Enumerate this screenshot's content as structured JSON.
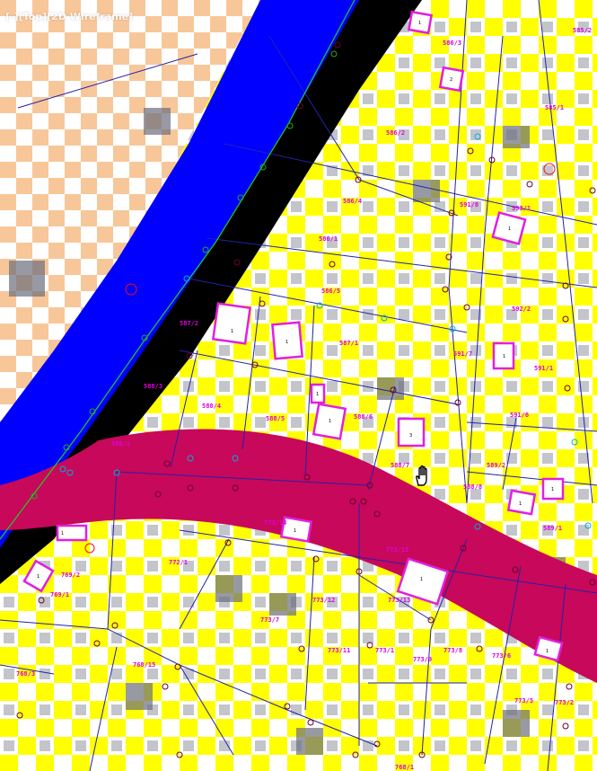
{
  "viewport": {
    "label": "[-][Top][2D Wireframe]",
    "view": "Top",
    "visual_style": "2D Wireframe"
  },
  "colors": {
    "checker_peach": "#f7c79a",
    "checker_white": "#ffffff",
    "checker_yellow": "#ffff00",
    "checker_gray": "#6f6f7a",
    "water_blue": "#0000ff",
    "road_crimson": "#c8085a",
    "parcel_line": "#2222aa",
    "boundary_green": "#22cc22",
    "building_magenta": "#e020e0",
    "label_magenta": "#e000e0"
  },
  "parcel_labels": [
    "586/3",
    "585/2",
    "585/1",
    "586/2",
    "586/4",
    "591/8",
    "593/1",
    "586/1",
    "586/5",
    "587/2",
    "587/1",
    "592/2",
    "591/7",
    "591/1",
    "588/3",
    "588/4",
    "588/5",
    "588/6",
    "591/6",
    "588/1",
    "588/7",
    "589/2",
    "588/8",
    "589/1",
    "773/14",
    "773/15",
    "772/1",
    "769/2",
    "769/1",
    "773/12",
    "773/13",
    "773/7",
    "773/11",
    "773/1",
    "773/9",
    "773/8",
    "773/6",
    "768/3",
    "768/15",
    "773/5",
    "773/2",
    "768/1"
  ],
  "building_labels": [
    "1",
    "2",
    "1",
    "1",
    "1",
    "1",
    "1",
    "1",
    "3",
    "1",
    "1",
    "1",
    "1",
    "1",
    "1",
    "1",
    "1"
  ],
  "cursor": "pan-hand-icon"
}
